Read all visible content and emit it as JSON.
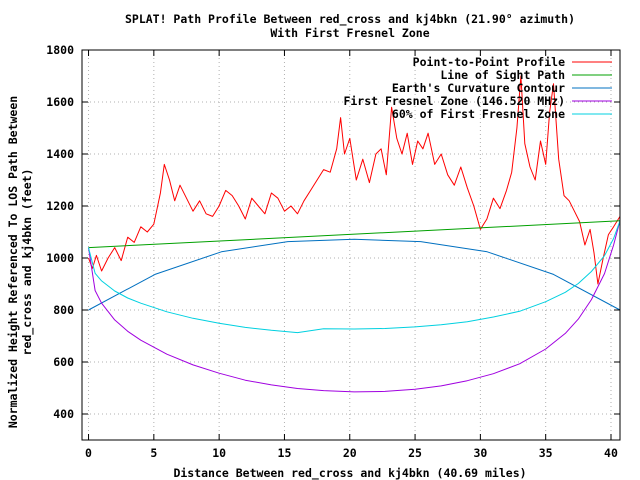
{
  "chart_data": {
    "type": "line",
    "title_line1": "SPLAT! Path Profile Between red_cross and kj4bkn (21.90° azimuth)",
    "title_line2": "With First Fresnel Zone",
    "xlabel": "Distance Between red_cross and kj4bkn (40.69 miles)",
    "ylabel_line1": "Normalized Height Referenced To LOS Path Between",
    "ylabel_line2": "red_cross and kj4bkn (feet)",
    "xlim": [
      -0.5,
      40.69
    ],
    "ylim": [
      300,
      1800
    ],
    "xticks": [
      0,
      5,
      10,
      15,
      20,
      25,
      30,
      35,
      40
    ],
    "yticks": [
      400,
      600,
      800,
      1000,
      1200,
      1400,
      1600,
      1800
    ],
    "grid": true,
    "legend_position": "top-right",
    "series": [
      {
        "name": "Point-to-Point Profile",
        "color": "#ff0000",
        "x": [
          0,
          0.3,
          0.6,
          1,
          1.5,
          2,
          2.5,
          3,
          3.5,
          4,
          4.5,
          5,
          5.5,
          5.8,
          6.2,
          6.6,
          7,
          7.5,
          8,
          8.5,
          9,
          9.5,
          10,
          10.5,
          11,
          11.5,
          12,
          12.5,
          13,
          13.5,
          14,
          14.5,
          15,
          15.5,
          16,
          16.5,
          17,
          17.5,
          18,
          18.5,
          19,
          19.3,
          19.6,
          20,
          20.5,
          21,
          21.5,
          22,
          22.4,
          22.8,
          23.2,
          23.6,
          24,
          24.4,
          24.8,
          25.2,
          25.6,
          26,
          26.5,
          27,
          27.5,
          28,
          28.5,
          29,
          29.5,
          30,
          30.5,
          31,
          31.5,
          32,
          32.4,
          32.8,
          33.1,
          33.4,
          33.8,
          34.2,
          34.6,
          35,
          35.3,
          35.6,
          36,
          36.4,
          36.8,
          37.2,
          37.6,
          38,
          38.4,
          38.7,
          39,
          39.4,
          39.8,
          40.2,
          40.69
        ],
        "y": [
          1000,
          960,
          1010,
          950,
          1000,
          1040,
          990,
          1080,
          1060,
          1120,
          1100,
          1130,
          1250,
          1360,
          1300,
          1220,
          1280,
          1230,
          1180,
          1220,
          1170,
          1160,
          1200,
          1260,
          1240,
          1200,
          1150,
          1230,
          1200,
          1170,
          1250,
          1230,
          1180,
          1200,
          1170,
          1220,
          1260,
          1300,
          1340,
          1330,
          1420,
          1540,
          1400,
          1460,
          1300,
          1380,
          1290,
          1400,
          1420,
          1320,
          1580,
          1460,
          1400,
          1480,
          1360,
          1450,
          1420,
          1480,
          1360,
          1400,
          1320,
          1280,
          1350,
          1270,
          1200,
          1110,
          1150,
          1230,
          1190,
          1260,
          1330,
          1500,
          1700,
          1440,
          1350,
          1300,
          1450,
          1360,
          1560,
          1670,
          1380,
          1240,
          1220,
          1180,
          1140,
          1050,
          1110,
          1020,
          900,
          1000,
          1090,
          1120,
          1160
        ]
      },
      {
        "name": "Line of Sight Path",
        "color": "#00a000",
        "x": [
          0,
          40.69
        ],
        "y": [
          1040,
          1143
        ]
      },
      {
        "name": "Earth's Curvature Contour",
        "color": "#0070c0",
        "x": [
          0,
          5.09,
          10.17,
          15.26,
          20.35,
          25.43,
          30.52,
          35.6,
          40.69
        ],
        "y": [
          800,
          937,
          1024,
          1063,
          1072,
          1063,
          1024,
          937,
          800
        ]
      },
      {
        "name": "First Fresnel Zone (146.520 MHz)",
        "color": "#a000e0",
        "x": [
          0,
          0.5,
          1,
          2,
          3,
          4,
          6,
          8,
          10,
          12,
          14,
          16,
          18,
          20.35,
          22.7,
          25,
          27,
          29,
          31,
          33,
          35,
          36.5,
          37.5,
          38.5,
          39.5,
          40.2,
          40.69
        ],
        "y": [
          1040,
          875,
          826,
          762,
          718,
          684,
          630,
          589,
          557,
          530,
          512,
          498,
          490,
          485,
          487,
          495,
          508,
          528,
          555,
          593,
          650,
          710,
          765,
          840,
          940,
          1050,
          1143
        ]
      },
      {
        "name": "60% of First Fresnel Zone",
        "color": "#00d0e0",
        "x": [
          0,
          0.5,
          1,
          2,
          3,
          4,
          6,
          8,
          10,
          12,
          14,
          16,
          18,
          20.35,
          22.7,
          25,
          27,
          29,
          31,
          33,
          35,
          36.5,
          37.5,
          38.5,
          39.5,
          40.2,
          40.69
        ],
        "y": [
          1040,
          941,
          912,
          873,
          846,
          826,
          793,
          768,
          749,
          733,
          722,
          713,
          728,
          727,
          729,
          735,
          743,
          755,
          773,
          795,
          832,
          868,
          902,
          948,
          1009,
          1075,
          1143
        ]
      }
    ]
  }
}
